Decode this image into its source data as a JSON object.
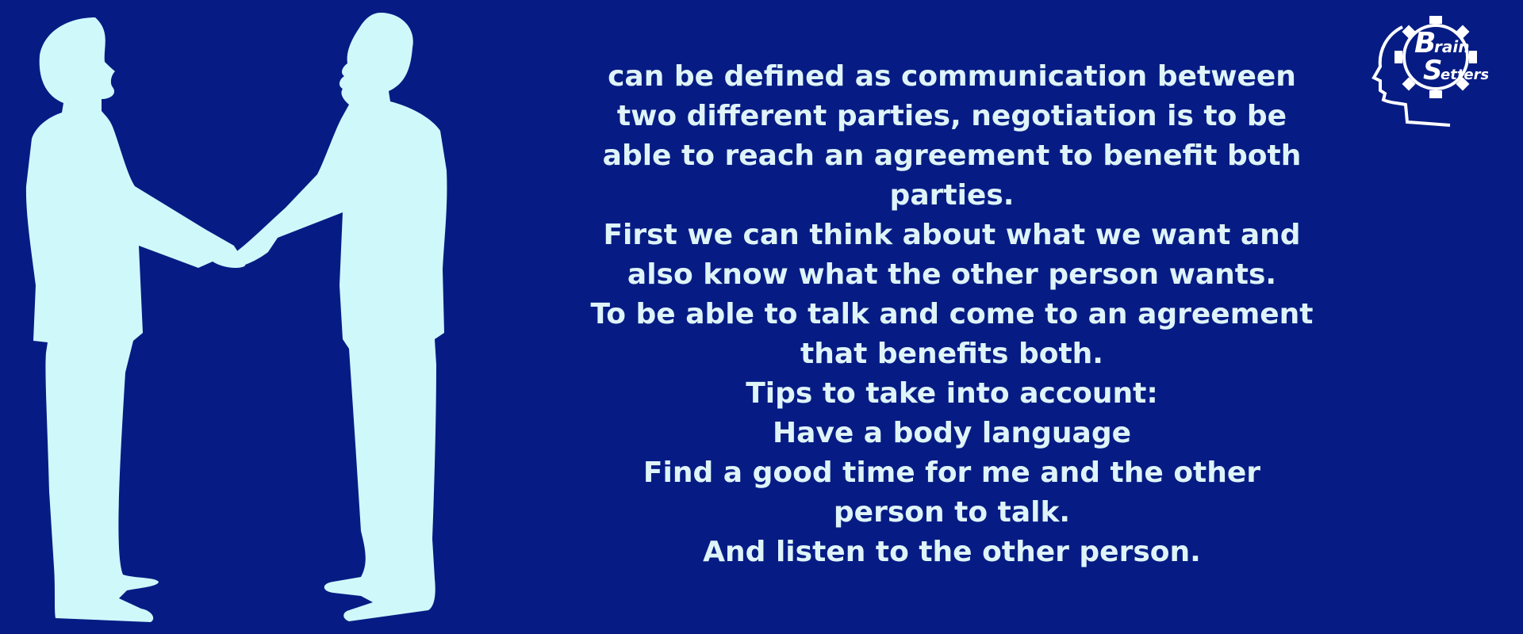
{
  "colors": {
    "background": "#061c84",
    "silhouette": "#cff8fb",
    "text": "#dff4f8",
    "logo": "#ffffff"
  },
  "logo": {
    "letter_b": "B",
    "word_rain": "rain",
    "letter_s": "S",
    "word_etters": "etters"
  },
  "content": {
    "paragraphs": [
      "can be defined as communication between two different parties, negotiation is to be able to reach an agreement to benefit both parties.",
      "First we can think about what we want and also know what the other person wants.",
      "To be able to talk and come to an agreement that benefits both.",
      "Tips to take into account:",
      "Have a body language",
      "Find a good time for me and the other person to talk.",
      "And listen to the other person."
    ]
  },
  "icons": {
    "silhouette": "handshake-silhouette-icon",
    "logo": "brain-gear-head-icon"
  }
}
